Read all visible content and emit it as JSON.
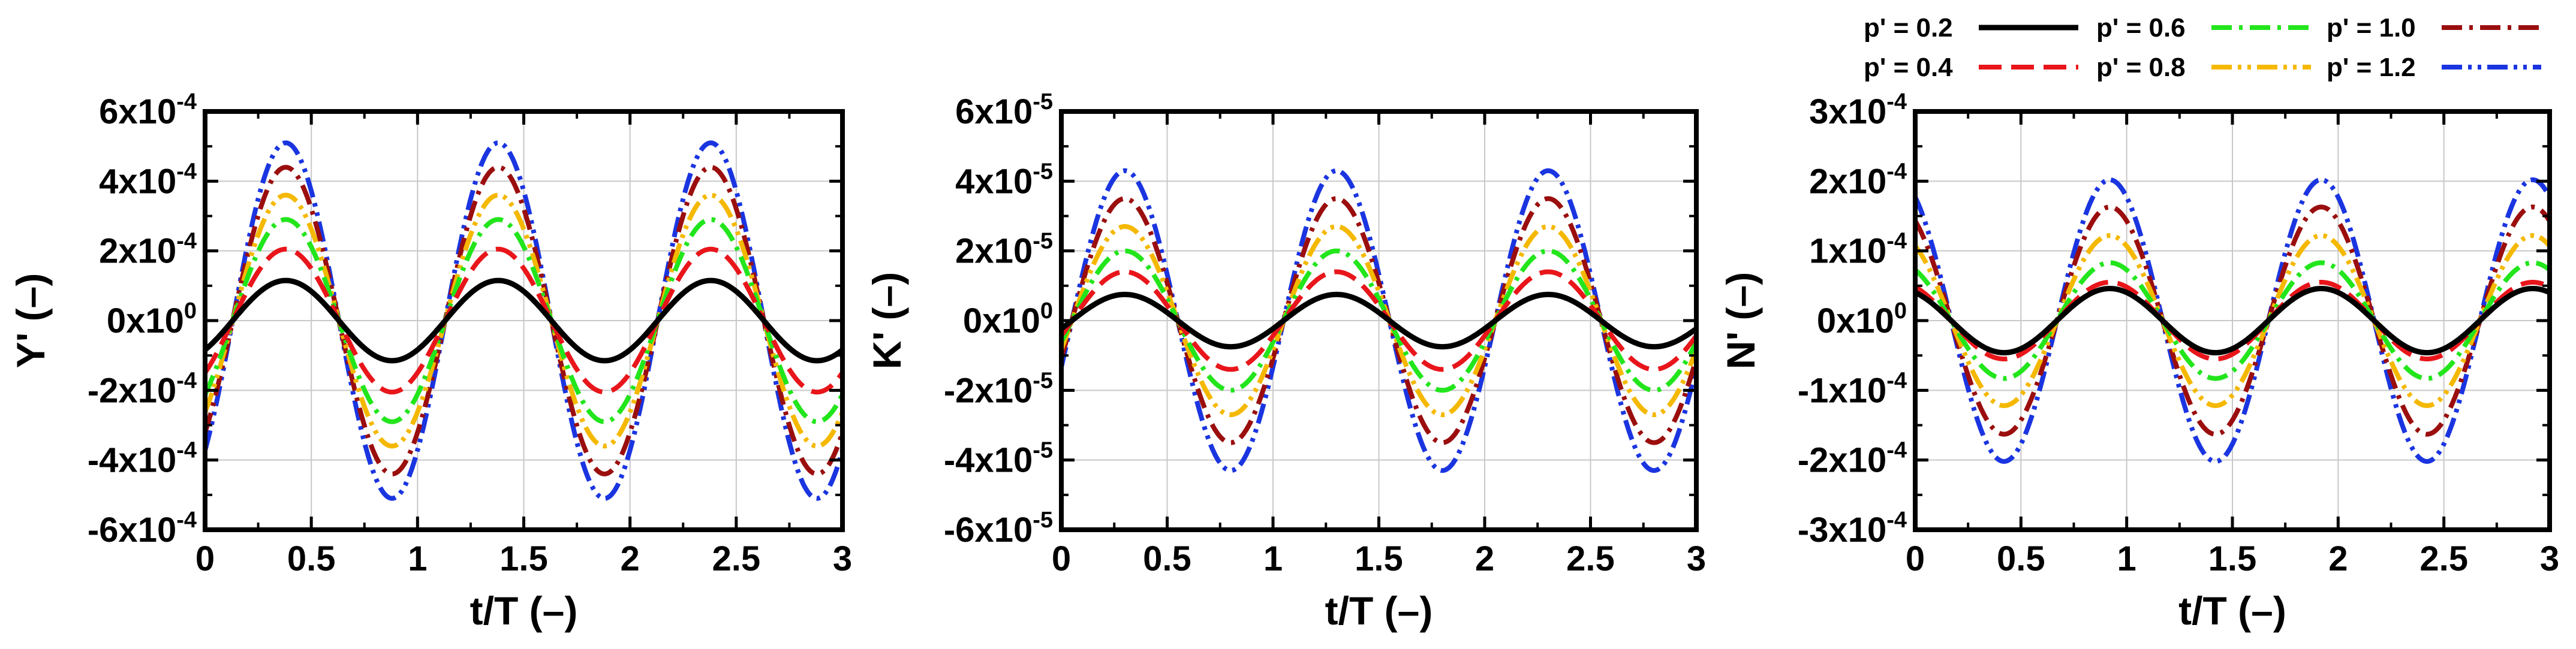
{
  "legend": {
    "items": [
      {
        "label": "p' = 0.2",
        "color": "#000000",
        "dash": "solid"
      },
      {
        "label": "p' = 0.4",
        "color": "#e8161b",
        "dash": "dash"
      },
      {
        "label": "p' = 0.6",
        "color": "#22e51c",
        "dash": "dashdot"
      },
      {
        "label": "p' = 0.8",
        "color": "#f5b800",
        "dash": "dashdotdot"
      },
      {
        "label": "p' = 1.0",
        "color": "#9b0e0e",
        "dash": "dashdot"
      },
      {
        "label": "p' = 1.2",
        "color": "#1a35e0",
        "dash": "dashdotdot"
      }
    ]
  },
  "chart_data": [
    {
      "type": "line",
      "xlabel": "t/T (–)",
      "ylabel": "Y' (–)",
      "xlim": [
        0,
        3
      ],
      "ylim": [
        -0.0006,
        0.0006
      ],
      "xticks": [
        "0",
        "0.5",
        "1",
        "1.5",
        "2",
        "2.5",
        "3"
      ],
      "yticks": [
        {
          "mant": "6x10",
          "exp": "-4"
        },
        {
          "mant": "4x10",
          "exp": "-4"
        },
        {
          "mant": "2x10",
          "exp": "-4"
        },
        {
          "mant": "0x10",
          "exp": "0"
        },
        {
          "mant": "-2x10",
          "exp": "-4"
        },
        {
          "mant": "-4x10",
          "exp": "-4"
        },
        {
          "mant": "-6x10",
          "exp": "-4"
        }
      ],
      "grid": true,
      "period": 1,
      "phase_peak": 0.38,
      "series": [
        {
          "name": "p' = 0.2",
          "amplitude": 0.000115
        },
        {
          "name": "p' = 0.4",
          "amplitude": 0.000205
        },
        {
          "name": "p' = 0.6",
          "amplitude": 0.00029
        },
        {
          "name": "p' = 0.8",
          "amplitude": 0.00036
        },
        {
          "name": "p' = 1.0",
          "amplitude": 0.00044
        },
        {
          "name": "p' = 1.2",
          "amplitude": 0.00051
        }
      ]
    },
    {
      "type": "line",
      "xlabel": "t/T (–)",
      "ylabel": "K' (–)",
      "xlim": [
        0,
        3
      ],
      "ylim": [
        -6e-05,
        6e-05
      ],
      "xticks": [
        "0",
        "0.5",
        "1",
        "1.5",
        "2",
        "2.5",
        "3"
      ],
      "yticks": [
        {
          "mant": "6x10",
          "exp": "-5"
        },
        {
          "mant": "4x10",
          "exp": "-5"
        },
        {
          "mant": "2x10",
          "exp": "-5"
        },
        {
          "mant": "0x10",
          "exp": "0"
        },
        {
          "mant": "-2x10",
          "exp": "-5"
        },
        {
          "mant": "-4x10",
          "exp": "-5"
        },
        {
          "mant": "-6x10",
          "exp": "-5"
        }
      ],
      "grid": true,
      "period": 1,
      "phase_peak": 0.3,
      "series": [
        {
          "name": "p' = 0.2",
          "amplitude": 7.5e-06
        },
        {
          "name": "p' = 0.4",
          "amplitude": 1.4e-05
        },
        {
          "name": "p' = 0.6",
          "amplitude": 2e-05
        },
        {
          "name": "p' = 0.8",
          "amplitude": 2.7e-05
        },
        {
          "name": "p' = 1.0",
          "amplitude": 3.5e-05
        },
        {
          "name": "p' = 1.2",
          "amplitude": 4.3e-05
        }
      ]
    },
    {
      "type": "line",
      "xlabel": "t/T (–)",
      "ylabel": "N' (–)",
      "xlim": [
        0,
        3
      ],
      "ylim": [
        -0.0003,
        0.0003
      ],
      "xticks": [
        "0",
        "0.5",
        "1",
        "1.5",
        "2",
        "2.5",
        "3"
      ],
      "yticks": [
        {
          "mant": "3x10",
          "exp": "-4"
        },
        {
          "mant": "2x10",
          "exp": "-4"
        },
        {
          "mant": "1x10",
          "exp": "-4"
        },
        {
          "mant": "0x10",
          "exp": "0"
        },
        {
          "mant": "-1x10",
          "exp": "-4"
        },
        {
          "mant": "-2x10",
          "exp": "-4"
        },
        {
          "mant": "-3x10",
          "exp": "-4"
        }
      ],
      "grid": true,
      "period": 1,
      "phase_peak": 0.92,
      "series": [
        {
          "name": "p' = 0.2",
          "amplitude": 4.6e-05
        },
        {
          "name": "p' = 0.4",
          "amplitude": 5.5e-05
        },
        {
          "name": "p' = 0.6",
          "amplitude": 8.3e-05
        },
        {
          "name": "p' = 0.8",
          "amplitude": 0.000122
        },
        {
          "name": "p' = 1.0",
          "amplitude": 0.000163
        },
        {
          "name": "p' = 1.2",
          "amplitude": 0.000202
        }
      ]
    }
  ]
}
